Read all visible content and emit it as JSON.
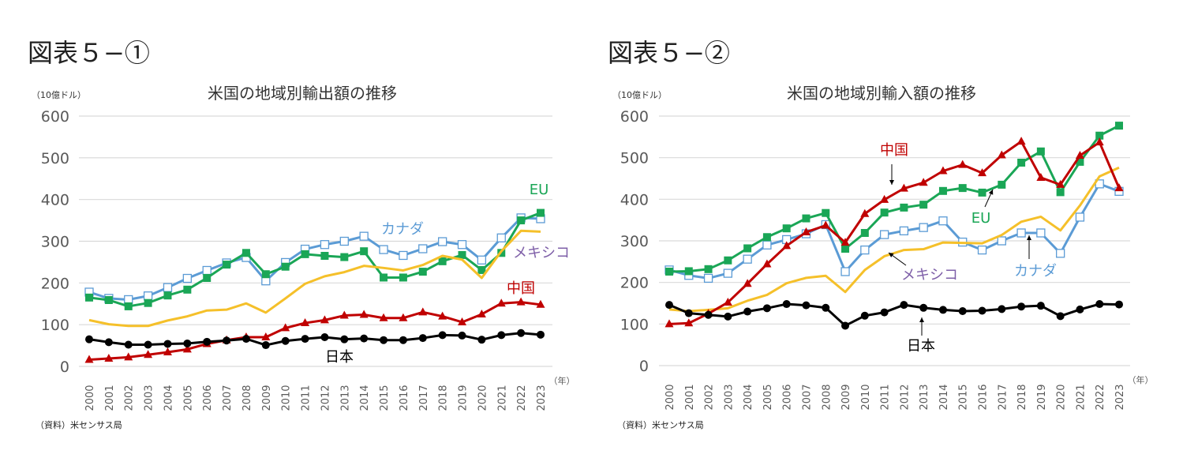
{
  "chart_data": [
    {
      "type": "line",
      "figure_label": "図表５−①",
      "title": "米国の地域別輸出額の推移",
      "ylabel": "（10億ドル）",
      "xlabel": "（年）",
      "source": "（資料）米センサス局",
      "ylim": [
        0,
        600
      ],
      "yticks": [
        0,
        100,
        200,
        300,
        400,
        500,
        600
      ],
      "grid": true,
      "x": [
        "2000",
        "2001",
        "2002",
        "2003",
        "2004",
        "2005",
        "2006",
        "2007",
        "2008",
        "2009",
        "2010",
        "2011",
        "2012",
        "2013",
        "2014",
        "2015",
        "2016",
        "2017",
        "2018",
        "2019",
        "2020",
        "2021",
        "2022",
        "2023"
      ],
      "series": [
        {
          "name": "カナダ",
          "color": "#5b9bd5",
          "marker": "open-square",
          "values": [
            178,
            163,
            160,
            169,
            189,
            211,
            230,
            248,
            261,
            205,
            249,
            281,
            292,
            300,
            312,
            280,
            266,
            282,
            299,
            292,
            255,
            308,
            356,
            354
          ]
        },
        {
          "name": "EU",
          "color": "#1aa656",
          "marker": "square",
          "values": [
            165,
            159,
            144,
            152,
            170,
            184,
            212,
            244,
            272,
            221,
            239,
            269,
            265,
            262,
            276,
            213,
            213,
            227,
            252,
            267,
            231,
            272,
            350,
            368
          ]
        },
        {
          "name": "メキシコ",
          "color": "#f5c02a",
          "label_color": "#7e5fa8",
          "marker": "none",
          "values": [
            111,
            101,
            97,
            97,
            110,
            120,
            134,
            136,
            151,
            129,
            163,
            198,
            216,
            226,
            241,
            236,
            230,
            243,
            265,
            256,
            212,
            276,
            325,
            323
          ]
        },
        {
          "name": "中国",
          "color": "#c00000",
          "marker": "triangle",
          "values": [
            16,
            19,
            22,
            28,
            34,
            41,
            54,
            63,
            70,
            70,
            92,
            104,
            111,
            122,
            124,
            116,
            116,
            130,
            120,
            106,
            125,
            151,
            154,
            148
          ]
        },
        {
          "name": "日本",
          "color": "#000000",
          "marker": "circle",
          "values": [
            65,
            58,
            52,
            52,
            54,
            55,
            59,
            62,
            66,
            51,
            61,
            66,
            70,
            65,
            67,
            63,
            63,
            68,
            75,
            74,
            64,
            75,
            80,
            76
          ]
        }
      ]
    },
    {
      "type": "line",
      "figure_label": "図表５−②",
      "title": "米国の地域別輸入額の推移",
      "ylabel": "（10億ドル）",
      "xlabel": "（年）",
      "source": "（資料）米センサス局",
      "ylim": [
        0,
        600
      ],
      "yticks": [
        0,
        100,
        200,
        300,
        400,
        500,
        600
      ],
      "grid": true,
      "x": [
        "2000",
        "2001",
        "2002",
        "2003",
        "2004",
        "2005",
        "2006",
        "2007",
        "2008",
        "2009",
        "2010",
        "2011",
        "2012",
        "2013",
        "2014",
        "2015",
        "2016",
        "2017",
        "2018",
        "2019",
        "2020",
        "2021",
        "2022",
        "2023"
      ],
      "series": [
        {
          "name": "カナダ",
          "color": "#5b9bd5",
          "marker": "open-square",
          "values": [
            230,
            217,
            210,
            222,
            256,
            290,
            303,
            317,
            339,
            226,
            278,
            315,
            324,
            332,
            348,
            297,
            278,
            300,
            319,
            319,
            270,
            357,
            437,
            419
          ]
        },
        {
          "name": "EU",
          "color": "#1aa656",
          "marker": "square",
          "values": [
            226,
            227,
            232,
            253,
            282,
            309,
            330,
            354,
            367,
            281,
            319,
            368,
            380,
            387,
            420,
            427,
            416,
            435,
            488,
            515,
            417,
            490,
            553,
            577
          ]
        },
        {
          "name": "メキシコ",
          "color": "#f5c02a",
          "label_color": "#7e5fa8",
          "marker": "none",
          "values": [
            135,
            131,
            134,
            138,
            156,
            170,
            198,
            211,
            216,
            177,
            230,
            263,
            278,
            280,
            296,
            295,
            294,
            314,
            346,
            358,
            325,
            385,
            455,
            476
          ]
        },
        {
          "name": "中国",
          "color": "#c00000",
          "marker": "triangle",
          "values": [
            100,
            102,
            125,
            152,
            197,
            244,
            288,
            321,
            337,
            296,
            365,
            399,
            426,
            440,
            468,
            483,
            463,
            506,
            539,
            452,
            435,
            505,
            537,
            427
          ]
        },
        {
          "name": "日本",
          "color": "#000000",
          "marker": "circle",
          "values": [
            146,
            126,
            122,
            118,
            130,
            138,
            148,
            145,
            139,
            96,
            120,
            128,
            146,
            139,
            134,
            131,
            132,
            136,
            142,
            144,
            119,
            135,
            148,
            147
          ]
        }
      ]
    }
  ]
}
